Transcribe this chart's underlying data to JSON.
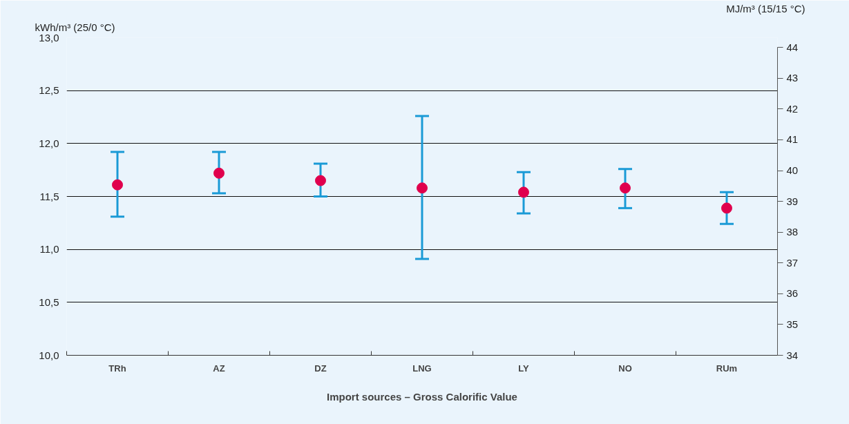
{
  "chart_data": {
    "type": "scatter",
    "categories": [
      "TRh",
      "AZ",
      "DZ",
      "LNG",
      "LY",
      "NO",
      "RUm"
    ],
    "series": [
      {
        "color": "#e0004d",
        "values": [
          11.61,
          11.72,
          11.65,
          11.58,
          11.54,
          11.58,
          11.39
        ],
        "errors": [
          [
            11.31,
            11.92
          ],
          [
            11.53,
            11.92
          ],
          [
            11.5,
            11.81
          ],
          [
            10.91,
            12.26
          ],
          [
            11.34,
            11.73
          ],
          [
            11.39,
            11.76
          ],
          [
            11.24,
            11.54
          ]
        ]
      }
    ],
    "marker": "circle",
    "xlabel": "Import sources – Gross Calorific Value",
    "ylabel": "kWh/m³ (25/0 °C)",
    "y2label": "MJ/m³ (15/15 °C)",
    "ylim": [
      10,
      13
    ],
    "yticks": [
      {
        "value": 10,
        "label": "10,0"
      },
      {
        "value": 10.5,
        "label": "10,5"
      },
      {
        "value": 11,
        "label": "11,0"
      },
      {
        "value": 11.5,
        "label": "11,5"
      },
      {
        "value": 12,
        "label": "12,0"
      },
      {
        "value": 12.5,
        "label": "12,5"
      },
      {
        "value": 13,
        "label": "13,0"
      }
    ],
    "y2lim": [
      34,
      44.32
    ],
    "y2ticks": [
      34,
      35,
      36,
      37,
      38,
      39,
      40,
      41,
      42,
      43,
      44
    ],
    "grid": "y"
  }
}
